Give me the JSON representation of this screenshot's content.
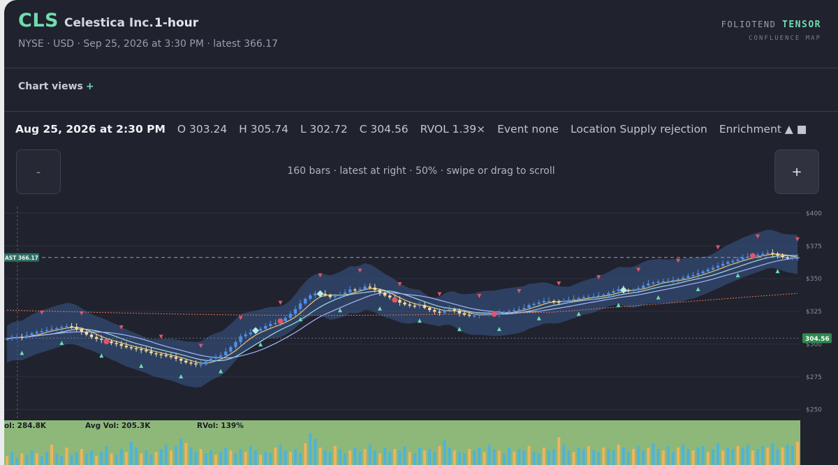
{
  "header": {
    "ticker": "CLS",
    "company": "Celestica Inc.",
    "interval": "1-hour",
    "meta": "NYSE · USD · Sep 25, 2026 at 3:30 PM · latest 366.17",
    "brand_left": "FOLIOTEND",
    "brand_right": "TENSOR",
    "brand_sub": "CONFLUENCE MAP"
  },
  "views": {
    "label": "Chart views",
    "plus": "+"
  },
  "bar_info": {
    "date": "Aug 25, 2026 at 2:30 PM",
    "open": "O 303.24",
    "high": "H 305.74",
    "low": "L 302.72",
    "close": "C 304.56",
    "rvol": "RVOL 1.39×",
    "event": "Event none",
    "location": "Location Supply rejection",
    "enrichment": "Enrichment ▲ ■"
  },
  "zoom": {
    "minus": "-",
    "plus": "+",
    "note": "160 bars · latest at right · 50% · swipe or drag to scroll"
  },
  "colors": {
    "accent": "#6fdcb0",
    "up": "#4f8fe8",
    "down": "#f2dfa3",
    "cloud": "#3a5a8c",
    "volume_bg": "#8db87a"
  },
  "chart_data": {
    "type": "candlestick",
    "bars": 160,
    "ylim": [
      245,
      405
    ],
    "yticks": [
      "$400",
      "$375",
      "$350",
      "$325",
      "$300",
      "$275",
      "$250"
    ],
    "ytick_values": [
      400,
      375,
      350,
      325,
      300,
      275,
      250
    ],
    "last_price": 366.17,
    "last_label": "AST 366.17",
    "cursor_price": 304.56,
    "cursor_label": "304.56",
    "close_path": [
      304,
      306,
      305,
      307,
      309,
      310,
      311,
      312,
      313,
      314,
      312,
      309,
      306,
      304,
      303,
      301,
      300,
      298,
      297,
      296,
      295,
      293,
      292,
      291,
      290,
      288,
      286,
      285,
      284,
      287,
      290,
      291,
      295,
      300,
      306,
      308,
      310,
      312,
      315,
      316,
      318,
      322,
      327,
      333,
      337,
      339,
      338,
      336,
      337,
      339,
      342,
      341,
      344,
      343,
      340,
      337,
      335,
      332,
      330,
      329,
      330,
      327,
      325,
      324,
      327,
      326,
      323,
      322,
      322,
      323,
      323,
      323,
      324,
      325,
      326,
      327,
      330,
      331,
      333,
      333,
      332,
      333,
      334,
      335,
      336,
      336,
      337,
      338,
      340,
      342,
      341,
      341,
      343,
      346,
      347,
      348,
      348,
      349,
      350,
      352,
      353,
      355,
      357,
      359,
      361,
      363,
      364,
      366,
      367,
      368,
      369,
      370,
      368,
      366,
      366,
      366
    ],
    "volume": {
      "vol_label": "ol: 284.8K",
      "avg_label": "Avg Vol: 205.3K",
      "rvol_label": "RVol: 139%",
      "bars": [
        6,
        9,
        5,
        8,
        7,
        10,
        8,
        6,
        9,
        14,
        8,
        6,
        12,
        7,
        9,
        11,
        8,
        10,
        6,
        9,
        13,
        8,
        7,
        11,
        9,
        16,
        12,
        8,
        10,
        7,
        9,
        11,
        14,
        10,
        13,
        18,
        15,
        12,
        9,
        11,
        8,
        10,
        7,
        9,
        12,
        10,
        8,
        11,
        9,
        13,
        10,
        7,
        9,
        8,
        12,
        14,
        10,
        9,
        11,
        8,
        15,
        22,
        18,
        12,
        10,
        9,
        13,
        11,
        8,
        10,
        12,
        9,
        11,
        14,
        10,
        8,
        12,
        9,
        11,
        10,
        13,
        9,
        8,
        12,
        10,
        11,
        9,
        13,
        17,
        12,
        10,
        9,
        8,
        11,
        10,
        12,
        9,
        14,
        11,
        10,
        8,
        12,
        9,
        11,
        10,
        13,
        9,
        8,
        12,
        10,
        11,
        19,
        14,
        10,
        9,
        12,
        11,
        13,
        10,
        9,
        12,
        11,
        10,
        14,
        12,
        9,
        11,
        13,
        10,
        12,
        15,
        11,
        10,
        13,
        9,
        12,
        14,
        11,
        10,
        12,
        13,
        9,
        11,
        15,
        10,
        12,
        11,
        13,
        12,
        14,
        10,
        11,
        13,
        12,
        15,
        11,
        12,
        14,
        13,
        16
      ]
    }
  }
}
